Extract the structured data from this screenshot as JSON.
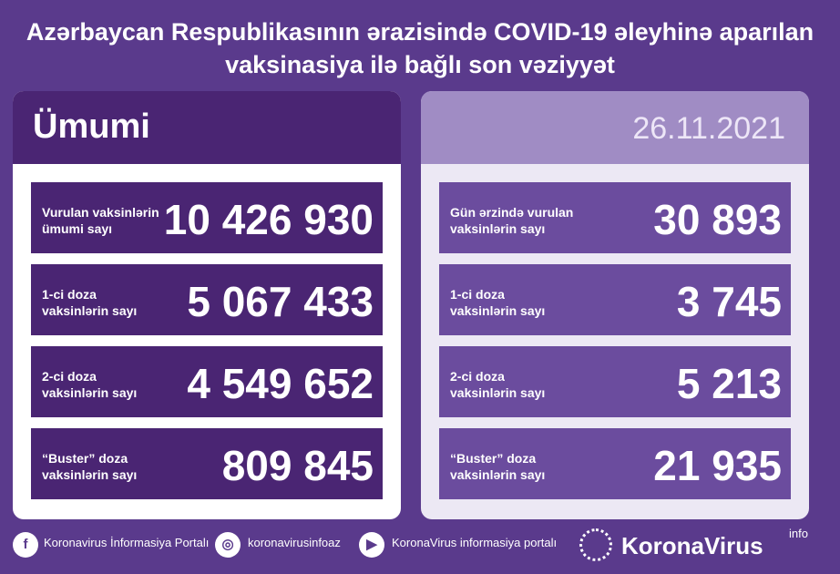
{
  "header": {
    "title_lines": [
      "Azərbaycan Respublikasının ərazisində COVID-19 əleyhinə aparılan",
      "vaksinasiya ilə bağlı son vəziyyət"
    ]
  },
  "left": {
    "title": "Ümumi",
    "rows": [
      {
        "label": [
          "Vurulan vaksinlərin",
          "ümumi sayı"
        ],
        "value": "10 426 930"
      },
      {
        "label": [
          "1-ci doza",
          "vaksinlərin sayı"
        ],
        "value": "5 067 433"
      },
      {
        "label": [
          "2-ci doza",
          "vaksinlərin sayı"
        ],
        "value": "4 549 652"
      },
      {
        "label": [
          "“Buster” doza",
          "vaksinlərin sayı"
        ],
        "value": "809 845"
      }
    ]
  },
  "right": {
    "date": "26.11.2021",
    "rows": [
      {
        "label": [
          "Gün ərzində vurulan",
          "vaksinlərin sayı"
        ],
        "value": "30 893"
      },
      {
        "label": [
          "1-ci doza",
          "vaksinlərin sayı"
        ],
        "value": "3 745"
      },
      {
        "label": [
          "2-ci doza",
          "vaksinlərin sayı"
        ],
        "value": "5 213"
      },
      {
        "label": [
          "“Buster” doza",
          "vaksinlərin sayı"
        ],
        "value": "21 935"
      }
    ]
  },
  "footer": {
    "facebook": "Koronavirus İnformasiya Portalı",
    "instagram": "koronavirusinfoaz",
    "youtube": "KoronaVirus informasiya portalı",
    "logo": "KoronaVirus",
    "logo_sup": "info"
  }
}
